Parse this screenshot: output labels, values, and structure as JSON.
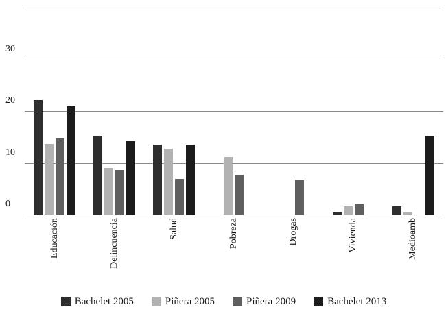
{
  "chart_data": {
    "type": "bar",
    "title": "",
    "xlabel": "",
    "ylabel": "",
    "categories": [
      "Educación",
      "Delincuencia",
      "Salud",
      "Pobreza",
      "Drogas",
      "Vivienda",
      "Medioamb"
    ],
    "series": [
      {
        "name": "Bachelet 2005",
        "color": "#2e2e2e",
        "values": [
          22.2,
          15.3,
          13.7,
          0,
          0,
          0.5,
          1.7
        ]
      },
      {
        "name": "Piñera 2005",
        "color": "#b2b2b2",
        "values": [
          13.8,
          9.1,
          12.8,
          11.2,
          0,
          1.7,
          0.5
        ]
      },
      {
        "name": "Piñera 2009",
        "color": "#5f5f5f",
        "values": [
          14.8,
          8.8,
          7.0,
          7.8,
          6.8,
          2.3,
          0
        ]
      },
      {
        "name": "Bachelet 2013",
        "color": "#1c1c1c",
        "values": [
          21.1,
          14.3,
          13.7,
          0,
          0,
          0,
          15.4
        ]
      }
    ],
    "ylim": [
      0,
      40
    ],
    "yticks": [
      0,
      10,
      20,
      30,
      40
    ],
    "grid": true,
    "legend_position": "bottom"
  }
}
